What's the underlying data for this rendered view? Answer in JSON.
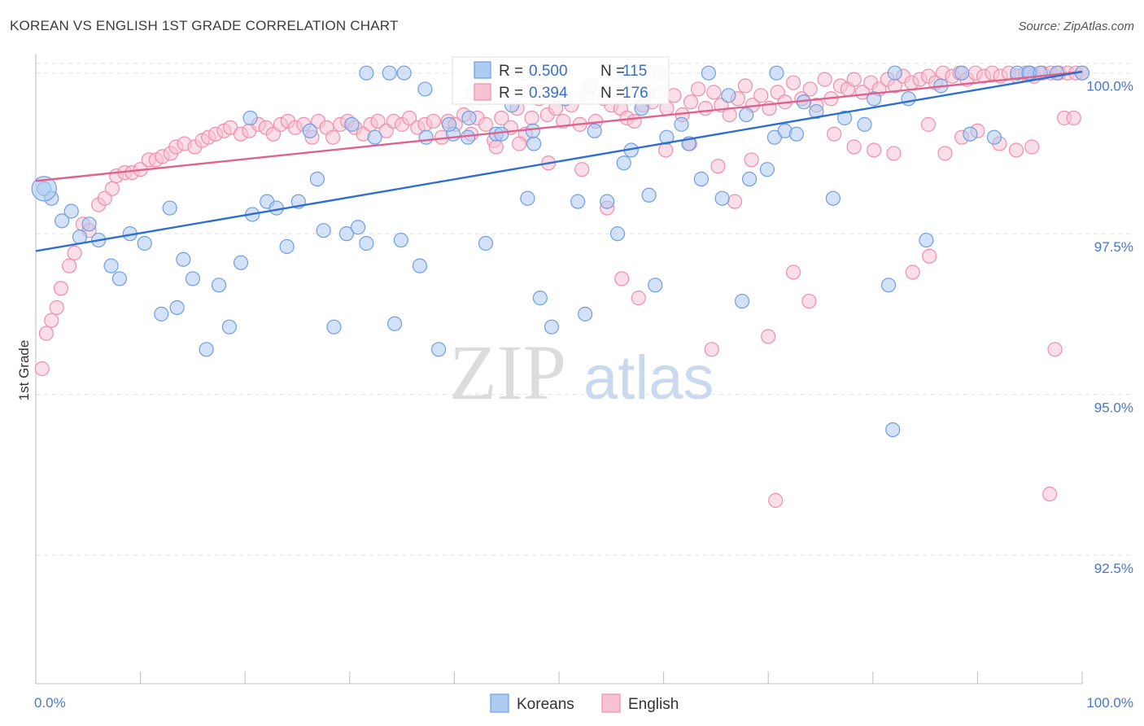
{
  "title": "KOREAN VS ENGLISH 1ST GRADE CORRELATION CHART",
  "source": "Source: ZipAtlas.com",
  "watermark": {
    "zip": "ZIP",
    "atlas": "atlas"
  },
  "colors": {
    "blue": "#6f9fe0",
    "blue_fill": "#aecbf2",
    "blue_line": "#2f6fcf",
    "pink": "#ee8fab",
    "pink_fill": "#f7c3d3",
    "pink_line": "#e0628c",
    "tick_text": "#4a78c2",
    "grid": "#e2e2e2"
  },
  "stats": [
    {
      "r_label": "R =",
      "r_value": "0.500",
      "n_label": "N =",
      "n_value": "115"
    },
    {
      "r_label": "R =",
      "r_value": "0.394",
      "n_label": "N =",
      "n_value": "176"
    }
  ],
  "chart_data": {
    "type": "scatter",
    "title": "KOREAN VS ENGLISH 1ST GRADE CORRELATION CHART",
    "xlabel": "",
    "ylabel": "1st Grade",
    "xlim": [
      0,
      100
    ],
    "ylim": [
      90.5,
      100.3
    ],
    "x_tick_labels": [
      "0.0%",
      "100.0%"
    ],
    "y_ticks": [
      92.5,
      95.0,
      97.5,
      100.0
    ],
    "y_tick_labels": [
      "92.5%",
      "95.0%",
      "97.5%",
      "100.0%"
    ],
    "grid": true,
    "legend": {
      "position": "bottom-center",
      "entries": [
        "Koreans",
        "English"
      ]
    },
    "series": [
      {
        "name": "Koreans",
        "trend": {
          "x": [
            0,
            100
          ],
          "y": [
            97.23,
            100.02
          ]
        },
        "points": [
          [
            0.8,
            98.2
          ],
          [
            1.5,
            98.05
          ],
          [
            2.5,
            97.7
          ],
          [
            3.4,
            97.85
          ],
          [
            4.2,
            97.45
          ],
          [
            5.1,
            97.65
          ],
          [
            6,
            97.4
          ],
          [
            7.2,
            97.0
          ],
          [
            8.0,
            96.8
          ],
          [
            9.0,
            97.5
          ],
          [
            10.4,
            97.35
          ],
          [
            12.0,
            96.25
          ],
          [
            12.8,
            97.9
          ],
          [
            13.5,
            96.35
          ],
          [
            14.1,
            97.1
          ],
          [
            15.0,
            96.8
          ],
          [
            16.3,
            95.7
          ],
          [
            17.5,
            96.7
          ],
          [
            18.5,
            96.05
          ],
          [
            19.6,
            97.05
          ],
          [
            20.7,
            97.8
          ],
          [
            22.1,
            98.0
          ],
          [
            23.0,
            97.9
          ],
          [
            24.0,
            97.3
          ],
          [
            25.1,
            98.0
          ],
          [
            26.9,
            98.35
          ],
          [
            27.5,
            97.55
          ],
          [
            28.5,
            96.05
          ],
          [
            29.7,
            97.5
          ],
          [
            30.8,
            97.6
          ],
          [
            31.6,
            97.35
          ],
          [
            32.4,
            99.0
          ],
          [
            34.3,
            96.1
          ],
          [
            34.9,
            97.4
          ],
          [
            36.7,
            97.0
          ],
          [
            37.3,
            99.0
          ],
          [
            38.5,
            95.7
          ],
          [
            39.9,
            99.05
          ],
          [
            41.3,
            99.0
          ],
          [
            41.8,
            99.7
          ],
          [
            43.0,
            97.35
          ],
          [
            44.0,
            99.05
          ],
          [
            45.5,
            99.5
          ],
          [
            47.0,
            98.05
          ],
          [
            47.6,
            98.9
          ],
          [
            48.2,
            96.5
          ],
          [
            49.3,
            96.05
          ],
          [
            50.6,
            99.6
          ],
          [
            51.8,
            98.0
          ],
          [
            52.5,
            96.25
          ],
          [
            53.4,
            99.1
          ],
          [
            54.6,
            98.0
          ],
          [
            55.6,
            97.5
          ],
          [
            56.2,
            98.6
          ],
          [
            56.9,
            98.8
          ],
          [
            57.9,
            99.45
          ],
          [
            58.6,
            98.1
          ],
          [
            59.2,
            96.7
          ],
          [
            60.3,
            99.0
          ],
          [
            61.7,
            99.2
          ],
          [
            62.4,
            98.9
          ],
          [
            63.6,
            98.35
          ],
          [
            65.6,
            98.05
          ],
          [
            67.5,
            96.45
          ],
          [
            67.9,
            99.35
          ],
          [
            68.2,
            98.35
          ],
          [
            69.9,
            98.5
          ],
          [
            70.6,
            99.0
          ],
          [
            71.6,
            99.1
          ],
          [
            72.7,
            99.05
          ],
          [
            74.6,
            99.4
          ],
          [
            76.2,
            98.05
          ],
          [
            77.3,
            99.3
          ],
          [
            79.2,
            99.2
          ],
          [
            80.1,
            99.6
          ],
          [
            81.5,
            96.7
          ],
          [
            81.9,
            94.45
          ],
          [
            83.4,
            99.6
          ],
          [
            85.1,
            97.4
          ],
          [
            86.5,
            99.8
          ],
          [
            89.3,
            99.05
          ],
          [
            91.6,
            99.0
          ],
          [
            93.8,
            100.0
          ],
          [
            95.0,
            100.0
          ],
          [
            100.0,
            100.0
          ],
          [
            94.9,
            100.0
          ],
          [
            31.6,
            100.0
          ],
          [
            33.8,
            100.0
          ],
          [
            35.2,
            100.0
          ],
          [
            42.9,
            100.0
          ],
          [
            46.7,
            100.0
          ],
          [
            48.4,
            100.0
          ],
          [
            55.5,
            100.0
          ],
          [
            59.6,
            100.0
          ],
          [
            97.6,
            100.0
          ],
          [
            96.0,
            100.0
          ],
          [
            88.5,
            100.0
          ],
          [
            82.1,
            100.0
          ],
          [
            70.8,
            100.0
          ],
          [
            64.3,
            100.0
          ],
          [
            37.2,
            99.75
          ],
          [
            41.4,
            99.3
          ],
          [
            44.5,
            99.05
          ],
          [
            53.0,
            99.8
          ],
          [
            58.4,
            99.7
          ],
          [
            66.2,
            99.65
          ],
          [
            73.4,
            99.55
          ],
          [
            47.5,
            99.1
          ],
          [
            39.5,
            99.2
          ],
          [
            26.2,
            99.1
          ],
          [
            20.5,
            99.3
          ],
          [
            30.2,
            99.2
          ]
        ]
      },
      {
        "name": "English",
        "trend": {
          "x": [
            0,
            100
          ],
          "y": [
            98.32,
            100.02
          ]
        },
        "points": [
          [
            0.6,
            95.4
          ],
          [
            1.0,
            95.95
          ],
          [
            1.5,
            96.15
          ],
          [
            2.0,
            96.35
          ],
          [
            2.4,
            96.65
          ],
          [
            3.2,
            97.0
          ],
          [
            3.7,
            97.2
          ],
          [
            4.5,
            97.65
          ],
          [
            5.1,
            97.55
          ],
          [
            6.0,
            97.95
          ],
          [
            6.6,
            98.05
          ],
          [
            7.3,
            98.2
          ],
          [
            7.7,
            98.4
          ],
          [
            8.5,
            98.45
          ],
          [
            9.2,
            98.45
          ],
          [
            10.0,
            98.5
          ],
          [
            10.8,
            98.65
          ],
          [
            11.5,
            98.65
          ],
          [
            12.1,
            98.7
          ],
          [
            12.9,
            98.75
          ],
          [
            13.4,
            98.85
          ],
          [
            14.2,
            98.9
          ],
          [
            15.2,
            98.85
          ],
          [
            15.9,
            98.95
          ],
          [
            16.5,
            99.0
          ],
          [
            17.2,
            99.05
          ],
          [
            18.0,
            99.1
          ],
          [
            18.6,
            99.15
          ],
          [
            19.6,
            99.05
          ],
          [
            20.4,
            99.1
          ],
          [
            21.3,
            99.2
          ],
          [
            22.0,
            99.15
          ],
          [
            22.7,
            99.05
          ],
          [
            23.4,
            99.2
          ],
          [
            24.1,
            99.25
          ],
          [
            24.8,
            99.15
          ],
          [
            25.6,
            99.2
          ],
          [
            26.4,
            99.0
          ],
          [
            27.0,
            99.25
          ],
          [
            27.8,
            99.15
          ],
          [
            28.4,
            99.0
          ],
          [
            29.1,
            99.2
          ],
          [
            29.8,
            99.25
          ],
          [
            30.5,
            99.15
          ],
          [
            31.3,
            99.05
          ],
          [
            32.0,
            99.2
          ],
          [
            32.7,
            99.25
          ],
          [
            33.5,
            99.1
          ],
          [
            34.2,
            99.25
          ],
          [
            35.0,
            99.2
          ],
          [
            35.7,
            99.3
          ],
          [
            36.5,
            99.15
          ],
          [
            37.2,
            99.2
          ],
          [
            38.0,
            99.25
          ],
          [
            38.8,
            99.0
          ],
          [
            39.4,
            99.25
          ],
          [
            40.1,
            99.2
          ],
          [
            40.9,
            99.35
          ],
          [
            41.6,
            99.05
          ],
          [
            42.2,
            99.3
          ],
          [
            43.0,
            99.2
          ],
          [
            43.8,
            98.95
          ],
          [
            44.5,
            99.3
          ],
          [
            45.4,
            99.15
          ],
          [
            46.0,
            99.45
          ],
          [
            46.8,
            99.05
          ],
          [
            47.4,
            99.3
          ],
          [
            48.1,
            99.6
          ],
          [
            48.9,
            99.35
          ],
          [
            49.7,
            99.45
          ],
          [
            50.4,
            99.25
          ],
          [
            51.2,
            99.5
          ],
          [
            52.0,
            99.2
          ],
          [
            52.7,
            99.65
          ],
          [
            53.5,
            99.25
          ],
          [
            54.3,
            99.6
          ],
          [
            55.0,
            99.5
          ],
          [
            55.9,
            99.45
          ],
          [
            56.5,
            99.3
          ],
          [
            57.2,
            99.25
          ],
          [
            58.0,
            99.5
          ],
          [
            58.9,
            99.55
          ],
          [
            59.6,
            99.7
          ],
          [
            60.3,
            99.45
          ],
          [
            61.0,
            99.65
          ],
          [
            61.8,
            99.35
          ],
          [
            62.6,
            99.55
          ],
          [
            63.3,
            99.75
          ],
          [
            64.0,
            99.45
          ],
          [
            64.8,
            99.7
          ],
          [
            65.5,
            99.5
          ],
          [
            66.3,
            99.35
          ],
          [
            67.1,
            99.6
          ],
          [
            67.8,
            99.8
          ],
          [
            68.5,
            99.5
          ],
          [
            69.3,
            99.65
          ],
          [
            70.1,
            99.45
          ],
          [
            70.9,
            99.7
          ],
          [
            71.6,
            99.55
          ],
          [
            72.4,
            99.85
          ],
          [
            73.2,
            99.6
          ],
          [
            74.0,
            99.75
          ],
          [
            74.6,
            99.5
          ],
          [
            75.4,
            99.9
          ],
          [
            76.0,
            99.6
          ],
          [
            76.9,
            99.8
          ],
          [
            77.6,
            99.75
          ],
          [
            78.2,
            99.9
          ],
          [
            79.0,
            99.7
          ],
          [
            79.8,
            99.85
          ],
          [
            80.6,
            99.75
          ],
          [
            81.4,
            99.9
          ],
          [
            82.1,
            99.8
          ],
          [
            82.9,
            99.95
          ],
          [
            83.7,
            99.85
          ],
          [
            84.5,
            99.9
          ],
          [
            85.3,
            99.95
          ],
          [
            86.0,
            99.85
          ],
          [
            86.7,
            100.0
          ],
          [
            87.6,
            99.95
          ],
          [
            88.3,
            100.0
          ],
          [
            89.0,
            99.9
          ],
          [
            89.8,
            100.0
          ],
          [
            90.6,
            99.95
          ],
          [
            91.4,
            100.0
          ],
          [
            92.2,
            99.95
          ],
          [
            93.0,
            100.0
          ],
          [
            93.8,
            99.95
          ],
          [
            94.6,
            100.0
          ],
          [
            95.4,
            99.95
          ],
          [
            96.2,
            100.0
          ],
          [
            97.0,
            100.0
          ],
          [
            97.8,
            100.0
          ],
          [
            98.6,
            100.0
          ],
          [
            99.4,
            100.0
          ],
          [
            100.0,
            100.0
          ],
          [
            44.0,
            98.85
          ],
          [
            46.2,
            98.9
          ],
          [
            49.0,
            98.6
          ],
          [
            52.2,
            98.5
          ],
          [
            54.6,
            97.9
          ],
          [
            56.0,
            96.8
          ],
          [
            57.6,
            96.5
          ],
          [
            60.2,
            98.8
          ],
          [
            62.5,
            98.9
          ],
          [
            64.6,
            95.7
          ],
          [
            65.2,
            98.55
          ],
          [
            66.8,
            98.0
          ],
          [
            68.4,
            98.65
          ],
          [
            70.0,
            95.9
          ],
          [
            70.7,
            93.35
          ],
          [
            72.4,
            96.9
          ],
          [
            73.9,
            96.45
          ],
          [
            76.3,
            99.05
          ],
          [
            78.2,
            98.85
          ],
          [
            80.1,
            98.8
          ],
          [
            82.0,
            98.75
          ],
          [
            83.8,
            96.9
          ],
          [
            85.3,
            99.2
          ],
          [
            86.9,
            98.75
          ],
          [
            88.5,
            99.0
          ],
          [
            90.0,
            99.1
          ],
          [
            92.1,
            98.9
          ],
          [
            93.7,
            98.8
          ],
          [
            95.2,
            98.85
          ],
          [
            96.9,
            93.45
          ],
          [
            97.4,
            95.7
          ],
          [
            98.3,
            99.3
          ],
          [
            99.2,
            99.3
          ],
          [
            85.4,
            97.15
          ]
        ]
      }
    ]
  }
}
